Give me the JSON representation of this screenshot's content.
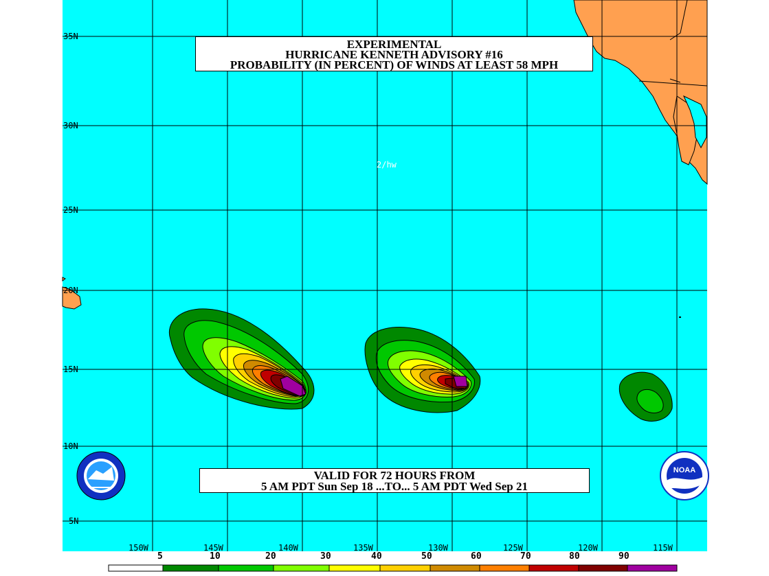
{
  "title": {
    "line1": "EXPERIMENTAL",
    "line2": "HURRICANE KENNETH ADVISORY #16",
    "line3": "PROBABILITY (IN PERCENT) OF WINDS AT LEAST 58 MPH"
  },
  "valid": {
    "line1": "VALID FOR 72 HOURS FROM",
    "line2": "5 AM PDT Sun Sep 18 ...TO... 5 AM PDT Wed Sep 21"
  },
  "initials": "2/hw",
  "latitude_labels": [
    "35N",
    "30N",
    "25N",
    "20N",
    "15N",
    "10N",
    "5N"
  ],
  "longitude_labels": [
    "150W",
    "145W",
    "140W",
    "135W",
    "130W",
    "125W",
    "120W",
    "115W"
  ],
  "color_scale": {
    "labels": [
      "5",
      "10",
      "20",
      "30",
      "40",
      "50",
      "60",
      "70",
      "80",
      "90"
    ],
    "colors": [
      "#ffffff",
      "#008800",
      "#00c800",
      "#80ff00",
      "#ffff00",
      "#ffd000",
      "#d08a00",
      "#ff7f00",
      "#c00000",
      "#800000",
      "#a000a0"
    ]
  },
  "colors": {
    "ocean": "#00ffff",
    "land": "#ffa050",
    "grid": "#000000"
  },
  "logos": {
    "left": "NWS logo",
    "right": "NOAA logo",
    "right_text": "NOAA"
  }
}
